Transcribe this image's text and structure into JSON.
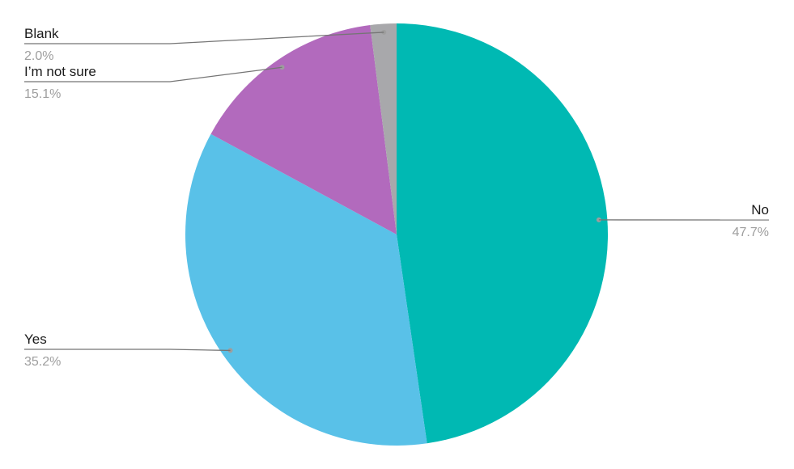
{
  "chart_data": {
    "type": "pie",
    "title": "",
    "slices": [
      {
        "label": "No",
        "value": 47.7,
        "value_label": "47.7%",
        "color": "#00b9b3"
      },
      {
        "label": "Yes",
        "value": 35.2,
        "value_label": "35.2%",
        "color": "#59c1e8"
      },
      {
        "label": "I’m not sure",
        "value": 15.1,
        "value_label": "15.1%",
        "color": "#b26abd"
      },
      {
        "label": "Blank",
        "value": 2.0,
        "value_label": "2.0%",
        "color": "#a8a8ab"
      }
    ],
    "legend": "none",
    "label_style": "leader-lines"
  }
}
